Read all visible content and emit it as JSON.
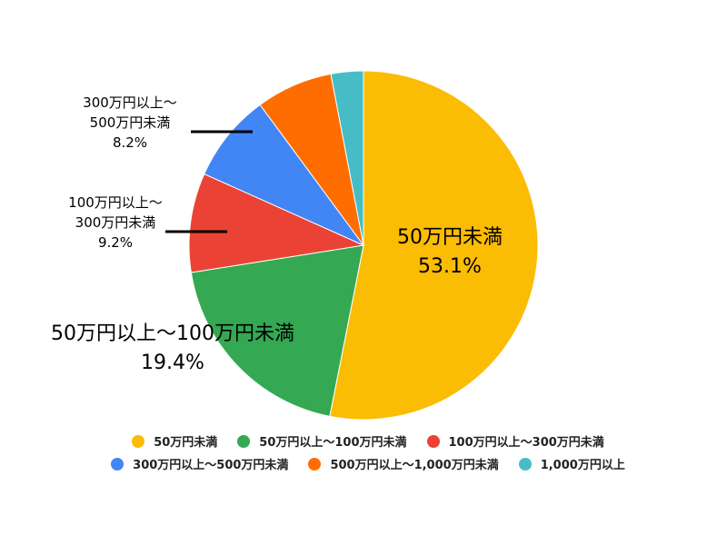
{
  "chart_data": {
    "type": "pie",
    "categories": [
      "50万円未満",
      "50万円以上～100万円未満",
      "100万円以上～300万円未満",
      "300万円以上～500万円未満",
      "500万円以上～1,000万円未満",
      "1,000万円以上"
    ],
    "values": [
      53.1,
      19.4,
      9.2,
      8.2,
      7.1,
      3.0
    ],
    "value_labels": [
      "53.1%",
      "19.4%",
      "9.2%",
      "8.2%",
      null,
      null
    ],
    "colors": [
      "#fbbc04",
      "#34a853",
      "#ea4335",
      "#4285f4",
      "#ff6d01",
      "#46bdc6"
    ]
  }
}
